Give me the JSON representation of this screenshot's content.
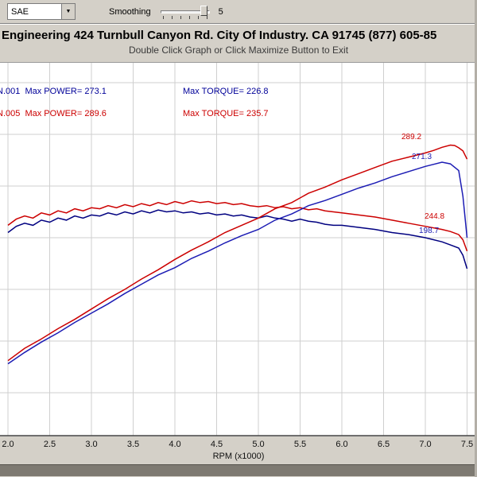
{
  "toolbar": {
    "correction_value": "SAE",
    "smoothing_label": "Smoothing",
    "smoothing_value": "5"
  },
  "header": {
    "title": "Engineering 424 Turnbull Canyon Rd. City Of Industry. CA 91745 (877) 605-85",
    "subtitle": "Double Click Graph or Click Maximize Button to Exit"
  },
  "legend": {
    "rows": [
      {
        "left": "N.001  Max POWER= 273.1",
        "right": "Max TORQUE= 226.8",
        "color": "#000099"
      },
      {
        "left": "N.005  Max POWER= 289.6",
        "right": "Max TORQUE= 235.7",
        "color": "#cc0000"
      }
    ]
  },
  "axis": {
    "x_title": "RPM (x1000)"
  },
  "colors": {
    "run1": "#000099",
    "run2": "#cc0000",
    "grid": "#cfcfcf",
    "chrome": "#d4d0c8"
  },
  "chart_data": {
    "type": "line",
    "xlabel": "RPM (x1000)",
    "x_ticks": [
      "2.0",
      "2.5",
      "3.0",
      "3.5",
      "4.0",
      "4.5",
      "5.0",
      "5.5",
      "6.0",
      "6.5",
      "7.0",
      "7.5"
    ],
    "x_range": [
      2.0,
      7.5
    ],
    "grid": true,
    "legend_position": "top-left",
    "series": [
      {
        "id": "run1-torque",
        "name": "Run .001 Torque (Max 226.8)",
        "color": "#000080",
        "points": [
          [
            2.0,
            205
          ],
          [
            2.1,
            211
          ],
          [
            2.2,
            214
          ],
          [
            2.3,
            212
          ],
          [
            2.4,
            217
          ],
          [
            2.5,
            215
          ],
          [
            2.6,
            219
          ],
          [
            2.7,
            217
          ],
          [
            2.8,
            221
          ],
          [
            2.9,
            219
          ],
          [
            3.0,
            222
          ],
          [
            3.1,
            221
          ],
          [
            3.2,
            224
          ],
          [
            3.3,
            222
          ],
          [
            3.4,
            225
          ],
          [
            3.5,
            223
          ],
          [
            3.6,
            226
          ],
          [
            3.7,
            224
          ],
          [
            3.8,
            226.8
          ],
          [
            3.9,
            225
          ],
          [
            4.0,
            226
          ],
          [
            4.1,
            224
          ],
          [
            4.2,
            225
          ],
          [
            4.3,
            223
          ],
          [
            4.4,
            224
          ],
          [
            4.5,
            222
          ],
          [
            4.6,
            223
          ],
          [
            4.7,
            221
          ],
          [
            4.8,
            222
          ],
          [
            4.9,
            220
          ],
          [
            5.0,
            219
          ],
          [
            5.1,
            221
          ],
          [
            5.2,
            219
          ],
          [
            5.3,
            218
          ],
          [
            5.4,
            216
          ],
          [
            5.5,
            218
          ],
          [
            5.6,
            216
          ],
          [
            5.7,
            215
          ],
          [
            5.8,
            213
          ],
          [
            5.9,
            212
          ],
          [
            6.0,
            212
          ],
          [
            6.2,
            210
          ],
          [
            6.4,
            208
          ],
          [
            6.6,
            205
          ],
          [
            6.8,
            203
          ],
          [
            7.0,
            200
          ],
          [
            7.2,
            196
          ],
          [
            7.3,
            193
          ],
          [
            7.4,
            190
          ],
          [
            7.45,
            183
          ],
          [
            7.5,
            170
          ]
        ]
      },
      {
        "id": "run2-torque",
        "name": "Run .005 Torque (Max 235.7)",
        "color": "#cc0000",
        "points": [
          [
            2.0,
            212
          ],
          [
            2.1,
            218
          ],
          [
            2.2,
            221
          ],
          [
            2.3,
            219
          ],
          [
            2.4,
            224
          ],
          [
            2.5,
            222
          ],
          [
            2.6,
            226
          ],
          [
            2.7,
            224
          ],
          [
            2.8,
            228
          ],
          [
            2.9,
            226
          ],
          [
            3.0,
            229
          ],
          [
            3.1,
            228
          ],
          [
            3.2,
            231
          ],
          [
            3.3,
            229
          ],
          [
            3.4,
            232
          ],
          [
            3.5,
            230
          ],
          [
            3.6,
            233
          ],
          [
            3.7,
            231
          ],
          [
            3.8,
            234
          ],
          [
            3.9,
            232
          ],
          [
            4.0,
            235
          ],
          [
            4.1,
            233
          ],
          [
            4.2,
            235.7
          ],
          [
            4.3,
            234
          ],
          [
            4.4,
            235
          ],
          [
            4.5,
            233
          ],
          [
            4.6,
            234
          ],
          [
            4.7,
            232
          ],
          [
            4.8,
            233
          ],
          [
            4.9,
            231
          ],
          [
            5.0,
            230
          ],
          [
            5.1,
            231
          ],
          [
            5.2,
            229
          ],
          [
            5.3,
            230
          ],
          [
            5.4,
            228
          ],
          [
            5.5,
            229
          ],
          [
            5.6,
            227
          ],
          [
            5.7,
            228
          ],
          [
            5.8,
            226
          ],
          [
            5.9,
            225
          ],
          [
            6.0,
            224
          ],
          [
            6.2,
            222
          ],
          [
            6.4,
            220
          ],
          [
            6.6,
            217
          ],
          [
            6.8,
            214
          ],
          [
            7.0,
            211
          ],
          [
            7.2,
            208
          ],
          [
            7.3,
            206
          ],
          [
            7.4,
            203
          ],
          [
            7.45,
            198
          ],
          [
            7.5,
            187
          ]
        ]
      },
      {
        "id": "run1-power",
        "name": "Run .001 Power (Max 273.1)",
        "color": "#1c1cb4",
        "points": [
          [
            2.0,
            78
          ],
          [
            2.2,
            89
          ],
          [
            2.4,
            99
          ],
          [
            2.6,
            108
          ],
          [
            2.8,
            118
          ],
          [
            3.0,
            127
          ],
          [
            3.2,
            136
          ],
          [
            3.4,
            146
          ],
          [
            3.6,
            155
          ],
          [
            3.8,
            164
          ],
          [
            4.0,
            171
          ],
          [
            4.2,
            180
          ],
          [
            4.4,
            187
          ],
          [
            4.6,
            195
          ],
          [
            4.8,
            202
          ],
          [
            5.0,
            208
          ],
          [
            5.2,
            217
          ],
          [
            5.4,
            223
          ],
          [
            5.6,
            231
          ],
          [
            5.8,
            236
          ],
          [
            6.0,
            242
          ],
          [
            6.2,
            248
          ],
          [
            6.4,
            253
          ],
          [
            6.6,
            259
          ],
          [
            6.8,
            264
          ],
          [
            7.0,
            269
          ],
          [
            7.1,
            271
          ],
          [
            7.2,
            273.1
          ],
          [
            7.3,
            271.5
          ],
          [
            7.4,
            265
          ],
          [
            7.45,
            240
          ],
          [
            7.5,
            200
          ]
        ]
      },
      {
        "id": "run2-power",
        "name": "Run .005 Power (Max 289.6)",
        "color": "#cc0000",
        "points": [
          [
            2.0,
            81
          ],
          [
            2.2,
            93
          ],
          [
            2.4,
            102
          ],
          [
            2.6,
            112
          ],
          [
            2.8,
            121
          ],
          [
            3.0,
            131
          ],
          [
            3.2,
            141
          ],
          [
            3.4,
            150
          ],
          [
            3.6,
            160
          ],
          [
            3.8,
            169
          ],
          [
            4.0,
            179
          ],
          [
            4.2,
            188
          ],
          [
            4.4,
            196
          ],
          [
            4.6,
            205
          ],
          [
            4.8,
            212
          ],
          [
            5.0,
            219
          ],
          [
            5.2,
            228
          ],
          [
            5.4,
            234
          ],
          [
            5.6,
            243
          ],
          [
            5.8,
            249
          ],
          [
            6.0,
            256
          ],
          [
            6.2,
            262
          ],
          [
            6.4,
            268
          ],
          [
            6.6,
            274
          ],
          [
            6.8,
            278
          ],
          [
            7.0,
            282
          ],
          [
            7.1,
            284.5
          ],
          [
            7.2,
            287.5
          ],
          [
            7.3,
            289.6
          ],
          [
            7.35,
            289.2
          ],
          [
            7.4,
            287
          ],
          [
            7.45,
            284
          ],
          [
            7.5,
            276
          ]
        ]
      }
    ],
    "annotations": [
      {
        "text": "289.2",
        "color": "#cc0000",
        "x": 505,
        "y": 88
      },
      {
        "text": "271.3",
        "color": "#1c1cb4",
        "x": 518,
        "y": 113
      },
      {
        "text": "244.8",
        "color": "#cc0000",
        "x": 534,
        "y": 188
      },
      {
        "text": "198.7",
        "color": "#1c1cb4",
        "x": 527,
        "y": 206
      }
    ]
  }
}
